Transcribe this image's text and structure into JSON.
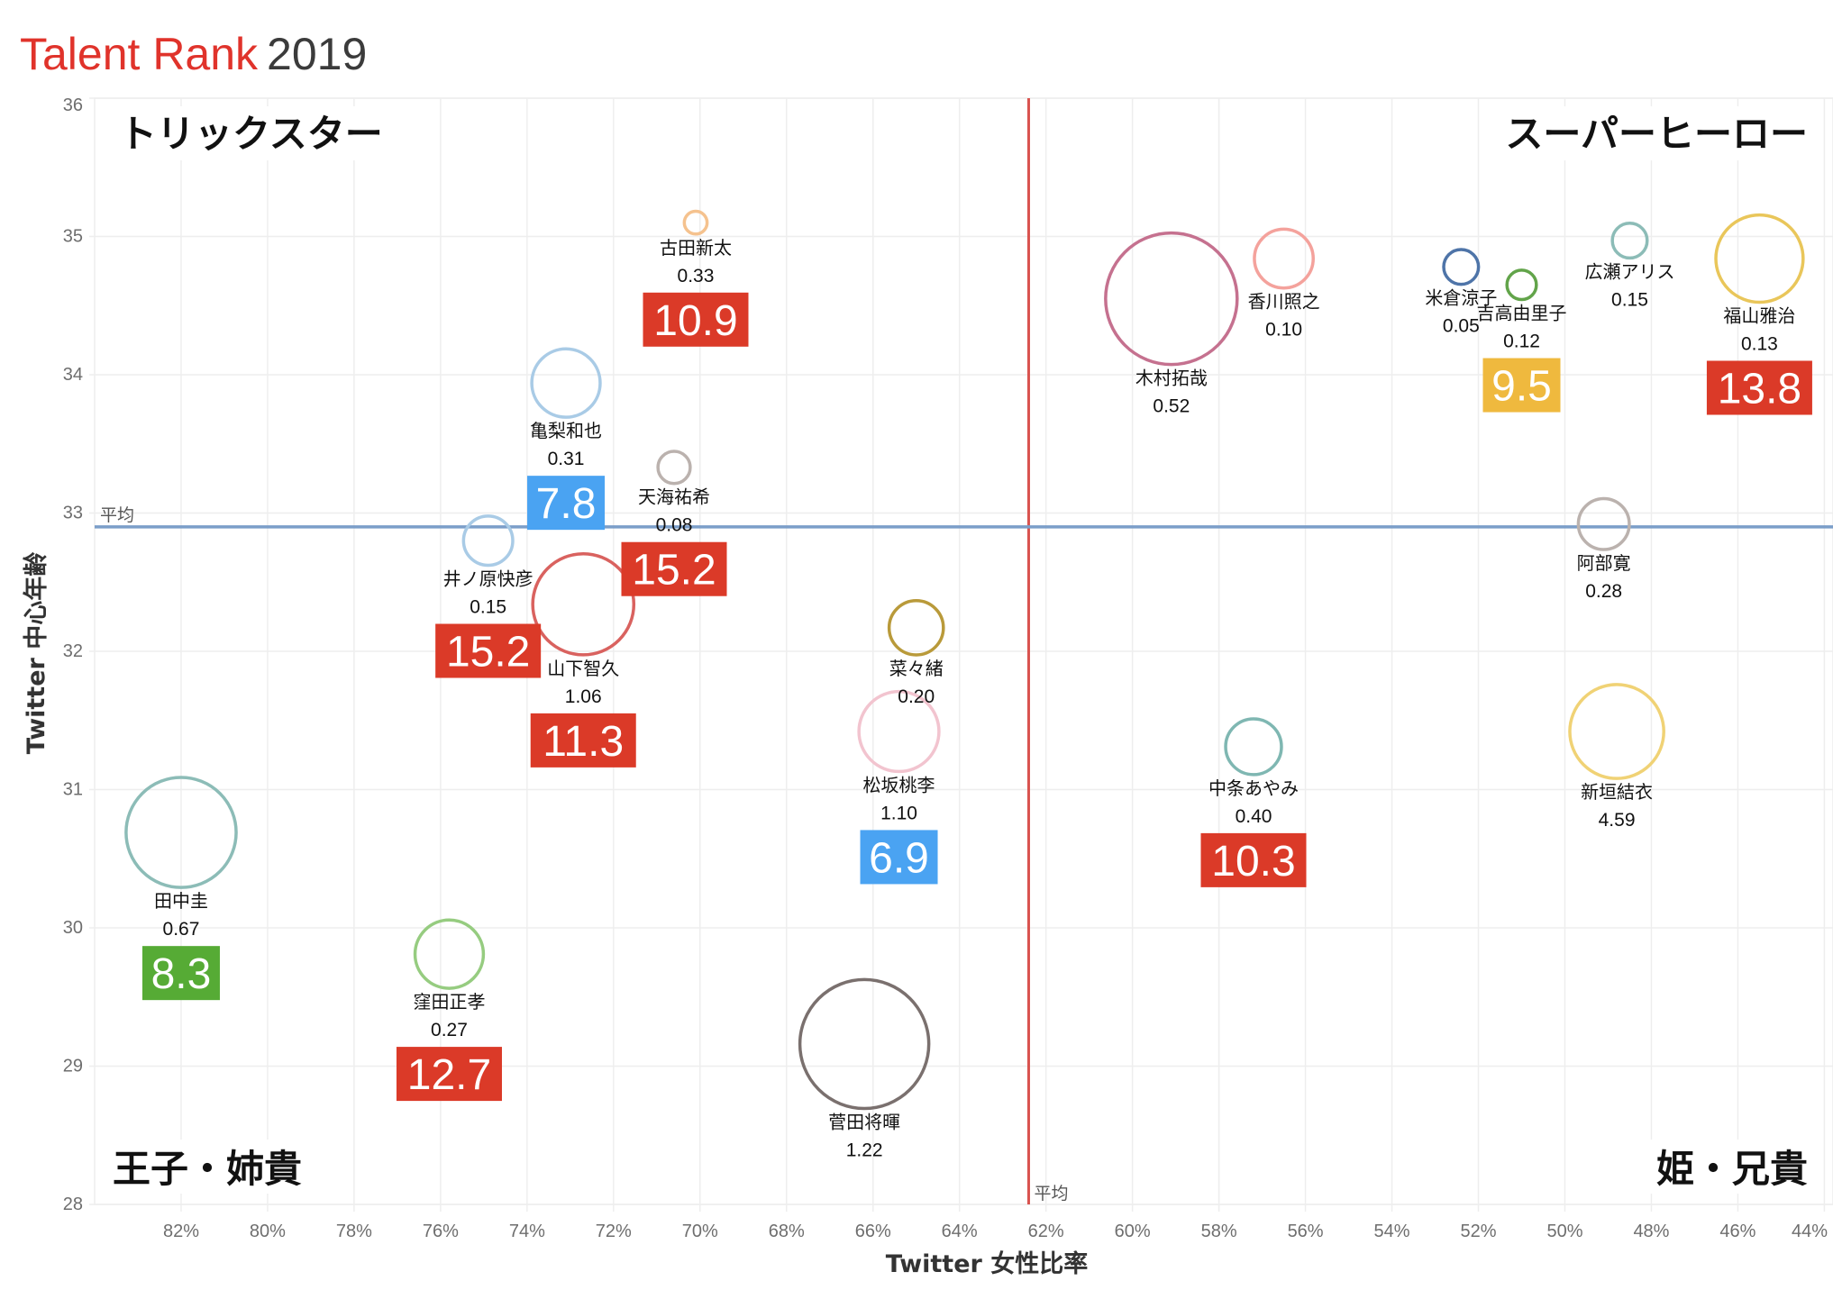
{
  "header": {
    "title_brand": "Talent Rank",
    "title_year": "2019"
  },
  "chart_data": {
    "type": "scatter",
    "subtype": "bubble",
    "title": "Talent Rank 2019",
    "xlabel": "Twitter 女性比率",
    "ylabel": "Twitter 中心年齢",
    "x_reversed": true,
    "xlim": [
      84,
      43.8
    ],
    "ylim": [
      28,
      36
    ],
    "x_ticks": [
      82,
      80,
      78,
      76,
      74,
      72,
      70,
      68,
      66,
      64,
      62,
      60,
      58,
      56,
      54,
      52,
      50,
      48,
      46,
      44
    ],
    "x_tick_suffix": "%",
    "y_ticks": [
      28,
      29,
      30,
      31,
      32,
      33,
      34,
      35,
      36
    ],
    "grid": true,
    "averages": {
      "x": 62.4,
      "y": 32.9,
      "label": "平均",
      "x_line_color": "#d9534f",
      "y_line_color": "#7b9ec9"
    },
    "quadrants": {
      "top_left": "トリックスター",
      "top_right": "スーパーヒーロー",
      "bottom_left": "王子・姉貴",
      "bottom_right": "姫・兄貴"
    },
    "rank_colors": {
      "red": "#db3a28",
      "blue": "#4aa3f2",
      "green": "#56ab35",
      "gold": "#efb93e"
    },
    "points": [
      {
        "name": "古田新太",
        "x": 70.1,
        "y": 35.1,
        "value": "0.33",
        "bubble_size": 0.03,
        "color": "#f5c28e",
        "rank": "10.9",
        "rank_color": "red"
      },
      {
        "name": "亀梨和也",
        "x": 73.1,
        "y": 33.94,
        "value": "0.31",
        "bubble_size": 0.27,
        "color": "#a9cbe6",
        "rank": "7.8",
        "rank_color": "blue"
      },
      {
        "name": "天海祐希",
        "x": 70.6,
        "y": 33.33,
        "value": "0.08",
        "bubble_size": 0.06,
        "color": "#bbb2ae",
        "rank": "15.2",
        "rank_color": "red"
      },
      {
        "name": "井ノ原快彦",
        "x": 74.9,
        "y": 32.8,
        "value": "0.15",
        "bubble_size": 0.14,
        "color": "#a9cbe6",
        "rank": "15.2",
        "rank_color": "red"
      },
      {
        "name": "山下智久",
        "x": 72.7,
        "y": 32.34,
        "value": "1.06",
        "bubble_size": 0.59,
        "color": "#d9625f",
        "rank": "11.3",
        "rank_color": "red"
      },
      {
        "name": "菜々緒",
        "x": 65.0,
        "y": 32.17,
        "value": "0.20",
        "bubble_size": 0.17,
        "color": "#b99a3a",
        "rank": null,
        "rank_color": null
      },
      {
        "name": "松坂桃李",
        "x": 65.4,
        "y": 31.42,
        "value": "1.10",
        "bubble_size": 0.37,
        "color": "#f2c4cf",
        "rank": "6.9",
        "rank_color": "blue"
      },
      {
        "name": "田中圭",
        "x": 82.0,
        "y": 30.69,
        "value": "0.67",
        "bubble_size": 0.7,
        "color": "#8cbcb7",
        "rank": "8.3",
        "rank_color": "green"
      },
      {
        "name": "窪田正孝",
        "x": 75.8,
        "y": 29.81,
        "value": "0.27",
        "bubble_size": 0.27,
        "color": "#96cc80",
        "rank": "12.7",
        "rank_color": "red"
      },
      {
        "name": "菅田将暉",
        "x": 66.2,
        "y": 29.16,
        "value": "1.22",
        "bubble_size": 0.96,
        "color": "#7a706e",
        "rank": null,
        "rank_color": null
      },
      {
        "name": "木村拓哉",
        "x": 59.1,
        "y": 34.55,
        "value": "0.52",
        "bubble_size": 1.0,
        "color": "#c5718f",
        "rank": null,
        "rank_color": null
      },
      {
        "name": "香川照之",
        "x": 56.5,
        "y": 34.84,
        "value": "0.10",
        "bubble_size": 0.2,
        "color": "#f4a29c",
        "rank": null,
        "rank_color": null
      },
      {
        "name": "米倉涼子",
        "x": 52.4,
        "y": 34.78,
        "value": "0.05",
        "bubble_size": 0.07,
        "color": "#4e74a8",
        "rank": null,
        "rank_color": null
      },
      {
        "name": "吉高由里子",
        "x": 51.0,
        "y": 34.65,
        "value": "0.12",
        "bubble_size": 0.05,
        "color": "#62a44a",
        "rank": "9.5",
        "rank_color": "gold"
      },
      {
        "name": "広瀬アリス",
        "x": 48.5,
        "y": 34.97,
        "value": "0.15",
        "bubble_size": 0.07,
        "color": "#8cbcb7",
        "rank": null,
        "rank_color": null
      },
      {
        "name": "福山雅治",
        "x": 45.5,
        "y": 34.84,
        "value": "0.13",
        "bubble_size": 0.44,
        "color": "#e9c65a",
        "rank": "13.8",
        "rank_color": "red"
      },
      {
        "name": "阿部寛",
        "x": 49.1,
        "y": 32.92,
        "value": "0.28",
        "bubble_size": 0.15,
        "color": "#bbb2ae",
        "rank": null,
        "rank_color": null
      },
      {
        "name": "中条あやみ",
        "x": 57.2,
        "y": 31.31,
        "value": "0.40",
        "bubble_size": 0.18,
        "color": "#7fb7b2",
        "rank": "10.3",
        "rank_color": "red"
      },
      {
        "name": "新垣結衣",
        "x": 48.8,
        "y": 31.42,
        "value": "4.59",
        "bubble_size": 0.51,
        "color": "#f0d275",
        "rank": null,
        "rank_color": null
      }
    ]
  }
}
